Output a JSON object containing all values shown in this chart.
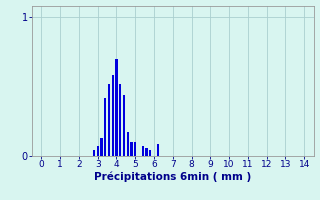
{
  "xlabel": "Précipitations 6min ( mm )",
  "ylabel": "",
  "bar_color": "#0000dd",
  "background_color": "#d8f5f0",
  "grid_color": "#aacfcf",
  "text_color": "#00008b",
  "xlim": [
    -0.5,
    14.5
  ],
  "ylim": [
    0,
    1.08
  ],
  "yticks": [
    0,
    1
  ],
  "xticks": [
    0,
    1,
    2,
    3,
    4,
    5,
    6,
    7,
    8,
    9,
    10,
    11,
    12,
    13,
    14
  ],
  "bar_positions": [
    2.8,
    3.0,
    3.2,
    3.4,
    3.6,
    3.8,
    4.0,
    4.2,
    4.4,
    4.6,
    4.8,
    5.0,
    5.4,
    5.6,
    5.8,
    6.2
  ],
  "bar_heights": [
    0.04,
    0.07,
    0.13,
    0.42,
    0.52,
    0.58,
    0.7,
    0.52,
    0.44,
    0.17,
    0.1,
    0.1,
    0.07,
    0.06,
    0.04,
    0.09
  ],
  "bar_width": 0.12
}
